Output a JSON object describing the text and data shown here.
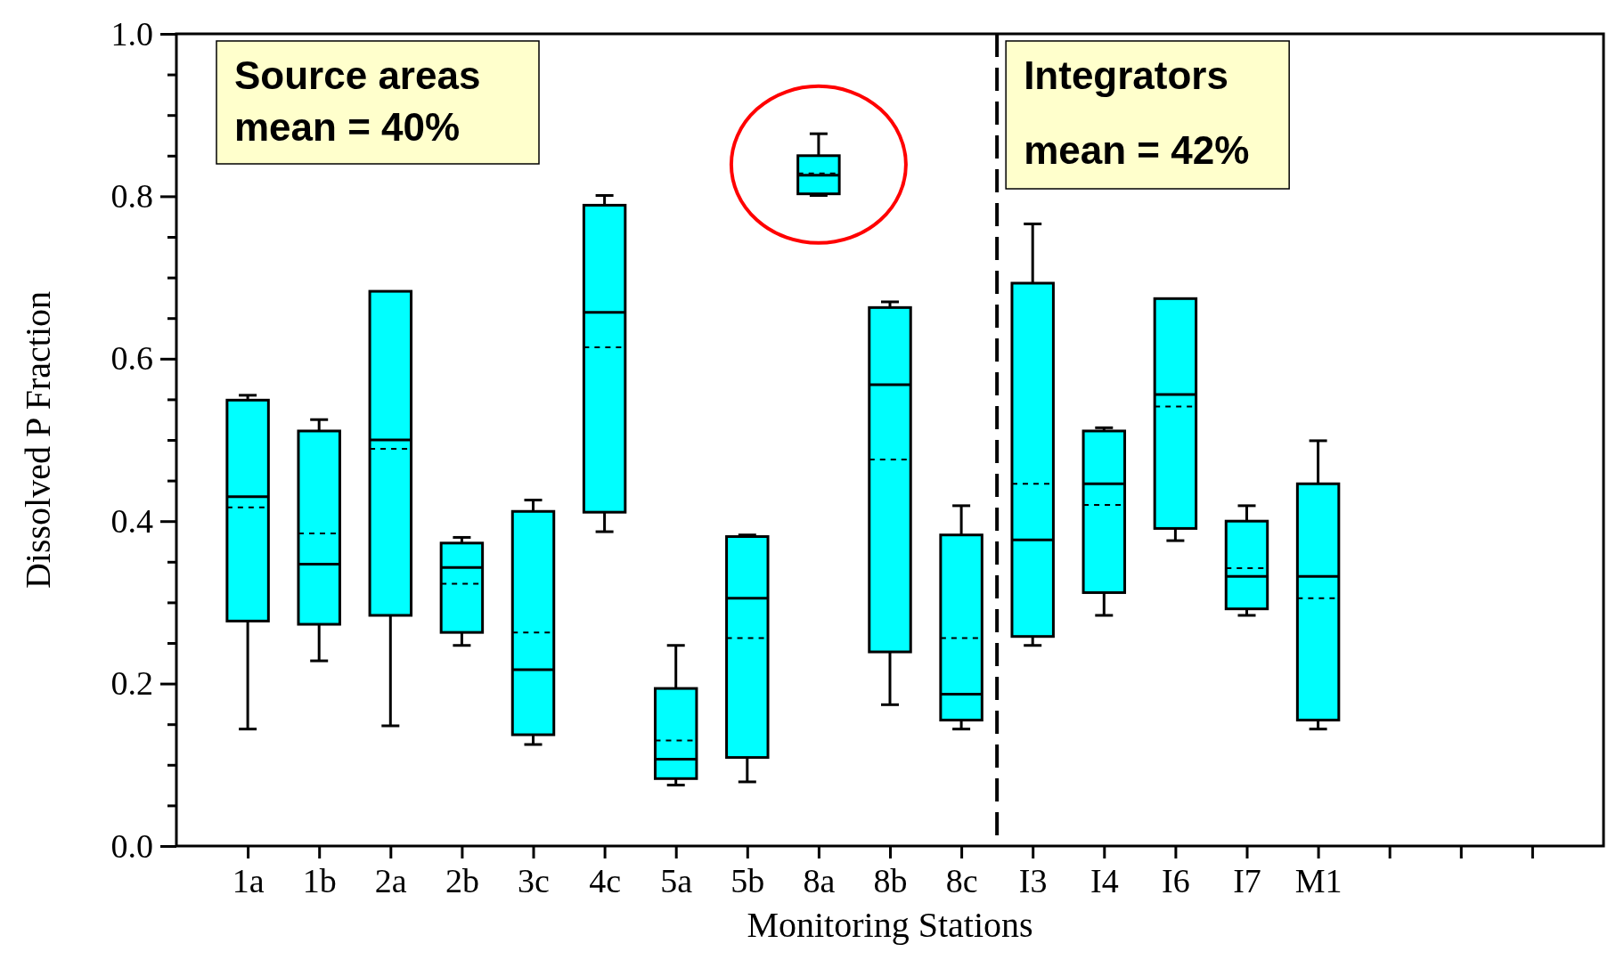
{
  "chart_data": {
    "type": "box",
    "xlabel": "Monitoring Stations",
    "ylabel": "Dissolved P Fraction",
    "categories": [
      "1a",
      "1b",
      "2a",
      "2b",
      "3c",
      "4c",
      "5a",
      "5b",
      "8a",
      "8b",
      "8c",
      "I3",
      "I4",
      "I6",
      "I7",
      "M1",
      null,
      null,
      null
    ],
    "color": "#00ffff",
    "boxes": [
      {
        "low": 0.144,
        "q1": 0.277,
        "median": 0.43,
        "q3": 0.549,
        "high": 0.555,
        "mean": 0.417
      },
      {
        "low": 0.228,
        "q1": 0.273,
        "median": 0.347,
        "q3": 0.511,
        "high": 0.525,
        "mean": 0.385
      },
      {
        "low": 0.148,
        "q1": 0.284,
        "median": 0.5,
        "q3": 0.683,
        "high": 0.683,
        "mean": 0.489
      },
      {
        "low": 0.247,
        "q1": 0.263,
        "median": 0.343,
        "q3": 0.373,
        "high": 0.38,
        "mean": 0.323
      },
      {
        "low": 0.125,
        "q1": 0.137,
        "median": 0.217,
        "q3": 0.412,
        "high": 0.426,
        "mean": 0.263
      },
      {
        "low": 0.387,
        "q1": 0.411,
        "median": 0.657,
        "q3": 0.789,
        "high": 0.801,
        "mean": 0.614
      },
      {
        "low": 0.075,
        "q1": 0.083,
        "median": 0.107,
        "q3": 0.194,
        "high": 0.247,
        "mean": 0.13
      },
      {
        "low": 0.079,
        "q1": 0.109,
        "median": 0.305,
        "q3": 0.381,
        "high": 0.383,
        "mean": 0.256
      },
      {
        "low": 0.801,
        "q1": 0.803,
        "median": 0.826,
        "q3": 0.85,
        "high": 0.877,
        "mean": 0.828
      },
      {
        "low": 0.174,
        "q1": 0.239,
        "median": 0.568,
        "q3": 0.663,
        "high": 0.67,
        "mean": 0.476
      },
      {
        "low": 0.144,
        "q1": 0.155,
        "median": 0.187,
        "q3": 0.383,
        "high": 0.419,
        "mean": 0.256
      },
      {
        "low": 0.247,
        "q1": 0.258,
        "median": 0.377,
        "q3": 0.693,
        "high": 0.766,
        "mean": 0.446
      },
      {
        "low": 0.284,
        "q1": 0.312,
        "median": 0.446,
        "q3": 0.511,
        "high": 0.515,
        "mean": 0.42
      },
      {
        "low": 0.376,
        "q1": 0.391,
        "median": 0.556,
        "q3": 0.674,
        "high": 0.674,
        "mean": 0.541
      },
      {
        "low": 0.284,
        "q1": 0.292,
        "median": 0.332,
        "q3": 0.4,
        "high": 0.419,
        "mean": 0.342
      },
      {
        "low": 0.144,
        "q1": 0.155,
        "median": 0.332,
        "q3": 0.446,
        "high": 0.499,
        "mean": 0.305
      },
      null,
      null,
      null
    ],
    "ylim": [
      0,
      1
    ],
    "yticks": [
      {
        "value": 0,
        "label": "0.0"
      },
      {
        "value": 0.05,
        "label": null
      },
      {
        "value": 0.1,
        "label": null
      },
      {
        "value": 0.15,
        "label": null
      },
      {
        "value": 0.2,
        "label": "0.2"
      },
      {
        "value": 0.25,
        "label": null
      },
      {
        "value": 0.3,
        "label": null
      },
      {
        "value": 0.35,
        "label": null
      },
      {
        "value": 0.4,
        "label": "0.4"
      },
      {
        "value": 0.45,
        "label": null
      },
      {
        "value": 0.5,
        "label": null
      },
      {
        "value": 0.55,
        "label": null
      },
      {
        "value": 0.6,
        "label": "0.6"
      },
      {
        "value": 0.65,
        "label": null
      },
      {
        "value": 0.7,
        "label": null
      },
      {
        "value": 0.75,
        "label": null
      },
      {
        "value": 0.8,
        "label": "0.8"
      },
      {
        "value": 0.85,
        "label": null
      },
      {
        "value": 0.9,
        "label": null
      },
      {
        "value": 0.95,
        "label": null
      },
      {
        "value": 1,
        "label": "1.0"
      }
    ],
    "annotations": [
      "Source areas\nmean = 40%",
      "Integrators\nmean = 42%"
    ]
  }
}
